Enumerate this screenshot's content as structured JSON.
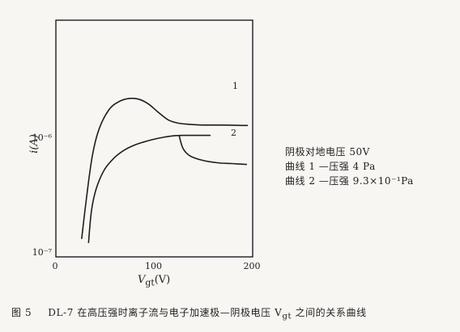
{
  "chart_data": {
    "type": "line",
    "xlabel_var": "V",
    "xlabel_sub": "gt",
    "xlabel_unit": "(V)",
    "ylabel": "i(A)",
    "xlim": [
      0,
      200
    ],
    "ylog": true,
    "ylim": [
      1e-07,
      3.5e-06
    ],
    "x_ticks": [
      "0",
      "100",
      "200"
    ],
    "x_tick_values": [
      0,
      100,
      200
    ],
    "y_ticks": [
      "10⁻⁶",
      "10⁻⁷"
    ],
    "y_tick_values": [
      1e-06,
      1e-07
    ],
    "grid": false,
    "series": [
      {
        "name": "1",
        "x": [
          27,
          32,
          38,
          45,
          55,
          65,
          75,
          85,
          95,
          105,
          115,
          125,
          135,
          150,
          170,
          190,
          196
        ],
        "y": [
          1.3e-07,
          3e-07,
          7e-07,
          1.2e-06,
          1.75e-06,
          2.05e-06,
          2.18e-06,
          2.15e-06,
          1.95e-06,
          1.65e-06,
          1.42e-06,
          1.33e-06,
          1.3e-06,
          1.28e-06,
          1.28e-06,
          1.27e-06,
          1.27e-06
        ]
      },
      {
        "name": "2",
        "x": [
          34,
          37,
          42,
          50,
          60,
          70,
          80,
          90,
          100,
          110,
          120,
          130,
          140,
          158,
          126,
          130,
          137,
          150,
          165,
          180,
          195
        ],
        "y": [
          1.2e-07,
          2.3e-07,
          3.6e-07,
          5.2e-07,
          6.6e-07,
          7.7e-07,
          8.5e-07,
          9.1e-07,
          9.6e-07,
          1e-06,
          1.03e-06,
          1.04e-06,
          1.04e-06,
          1.04e-06,
          1.04e-06,
          8e-07,
          6.9e-07,
          6.3e-07,
          6e-07,
          5.9e-07,
          5.8e-07
        ]
      }
    ]
  },
  "labels": {
    "curve1": "1",
    "curve2": "2"
  },
  "notes": [
    "阴极对地电压 50V",
    "曲线 1 —压强 4 Pa",
    "曲线 2 —压强 9.3×10⁻¹Pa"
  ],
  "caption": {
    "number": "图 5",
    "text": "DL-7 在高压强时离子流与电子加速极—阴极电压 V",
    "var_sub": "gt",
    "text_end": " 之间的关系曲线"
  }
}
